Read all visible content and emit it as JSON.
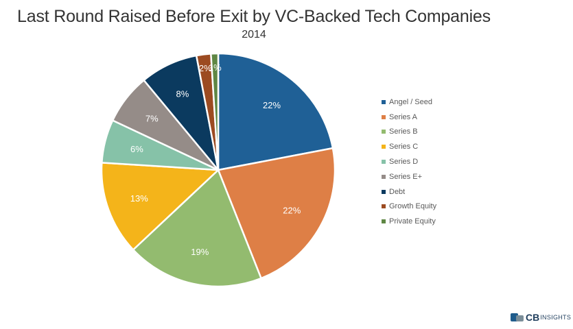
{
  "chart_data": {
    "type": "pie",
    "title": "Last Round Raised Before Exit by VC-Backed Tech Companies",
    "subtitle": "2014",
    "legend_position": "right",
    "slices": [
      {
        "label": "Angel / Seed",
        "value": 22,
        "display": "22%",
        "color": "#1f6096"
      },
      {
        "label": "Series A",
        "value": 22,
        "display": "22%",
        "color": "#de7f46"
      },
      {
        "label": "Series B",
        "value": 19,
        "display": "19%",
        "color": "#93bb6f"
      },
      {
        "label": "Series C",
        "value": 13,
        "display": "13%",
        "color": "#f4b41a"
      },
      {
        "label": "Series D",
        "value": 6,
        "display": "6%",
        "color": "#86c2a8"
      },
      {
        "label": "Series E+",
        "value": 7,
        "display": "7%",
        "color": "#958c88"
      },
      {
        "label": "Debt",
        "value": 8,
        "display": "8%",
        "color": "#0b3a5f"
      },
      {
        "label": "Growth Equity",
        "value": 2,
        "display": "2%",
        "color": "#9c4b21"
      },
      {
        "label": "Private Equity",
        "value": 1,
        "display": "1%",
        "color": "#5f8744"
      }
    ]
  },
  "branding": {
    "logo_bold": "CB",
    "logo_rest": "INSIGHTS"
  }
}
